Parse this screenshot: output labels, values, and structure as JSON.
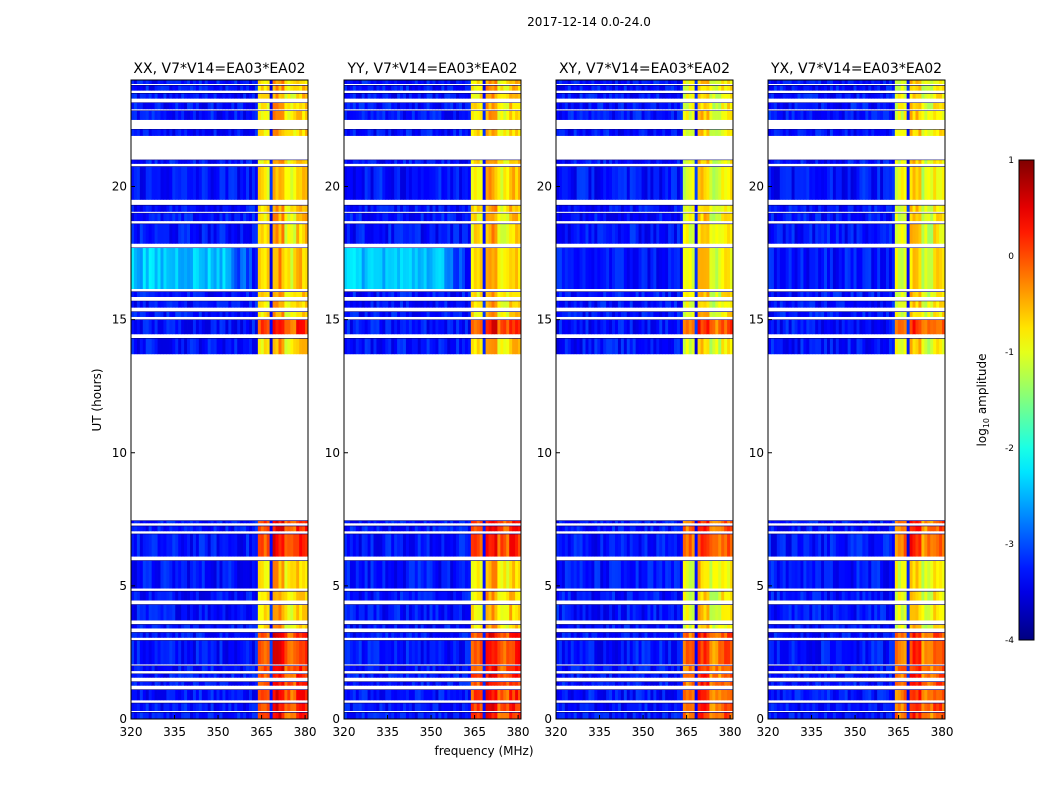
{
  "chart_data": {
    "type": "heatmap",
    "suptitle": "2017-12-14 0.0-24.0",
    "xlabel": "frequency (MHz)",
    "ylabel": "UT (hours)",
    "xlim": [
      320,
      381
    ],
    "ylim": [
      0,
      24
    ],
    "xticks": [
      320,
      335,
      350,
      365,
      380
    ],
    "yticks": [
      0,
      5,
      10,
      15,
      20
    ],
    "panels": [
      {
        "title": "XX, V7*V14=EA03*EA02",
        "pol": "XX"
      },
      {
        "title": "YY, V7*V14=EA03*EA02",
        "pol": "YY"
      },
      {
        "title": "XY, V7*V14=EA03*EA02",
        "pol": "XY"
      },
      {
        "title": "YX, V7*V14=EA03*EA02",
        "pol": "YX"
      }
    ],
    "colorbar": {
      "label_prefix": "log",
      "label_sub": "10",
      "label_suffix": " amplitude",
      "range": [
        -4,
        1
      ],
      "ticks": [
        1,
        0,
        -1,
        -2,
        -3,
        -4
      ],
      "colormap": "jet"
    },
    "data_bands_hours": [
      [
        0.0,
        0.25
      ],
      [
        0.3,
        0.6
      ],
      [
        0.7,
        1.1
      ],
      [
        1.25,
        1.4
      ],
      [
        1.55,
        1.7
      ],
      [
        1.8,
        2.0
      ],
      [
        2.05,
        2.95
      ],
      [
        3.05,
        3.25
      ],
      [
        3.4,
        3.55
      ],
      [
        3.7,
        4.3
      ],
      [
        4.45,
        4.8
      ],
      [
        4.9,
        5.95
      ],
      [
        6.1,
        6.95
      ],
      [
        7.05,
        7.25
      ],
      [
        7.35,
        7.45
      ],
      [
        13.7,
        14.3
      ],
      [
        14.45,
        15.0
      ],
      [
        15.1,
        15.3
      ],
      [
        15.45,
        15.7
      ],
      [
        15.85,
        16.05
      ],
      [
        16.15,
        17.7
      ],
      [
        17.85,
        18.6
      ],
      [
        18.7,
        19.0
      ],
      [
        19.05,
        19.3
      ],
      [
        19.5,
        20.75
      ],
      [
        20.85,
        21.0
      ],
      [
        21.9,
        22.15
      ],
      [
        22.5,
        22.85
      ],
      [
        22.9,
        23.15
      ],
      [
        23.3,
        23.5
      ],
      [
        23.6,
        23.8
      ],
      [
        23.85,
        24.0
      ]
    ],
    "rfi_channels_mhz": [
      {
        "start": 363.5,
        "end": 368.0,
        "level": -0.8
      },
      {
        "start": 368.5,
        "end": 372.5,
        "level": -0.4
      },
      {
        "start": 373.0,
        "end": 376.8,
        "level": -0.9
      },
      {
        "start": 377.2,
        "end": 381.0,
        "level": -0.6
      }
    ],
    "background_level": -3.3
  }
}
